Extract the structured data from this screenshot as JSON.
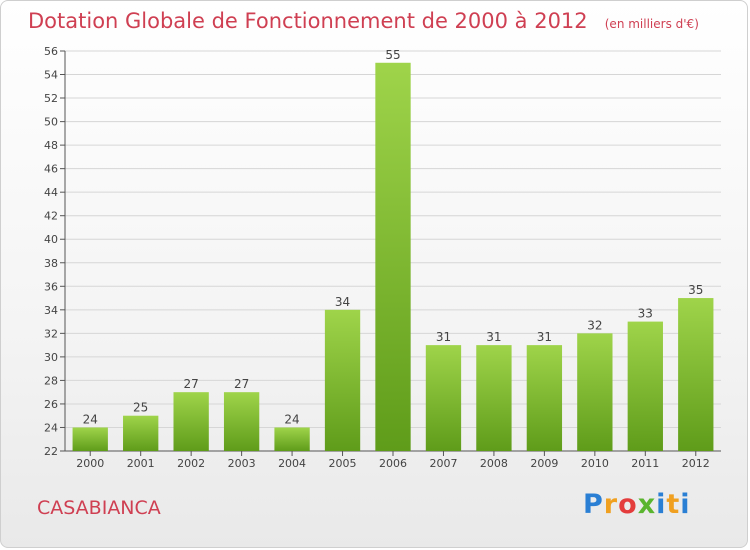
{
  "header": {
    "title": "Dotation Globale de Fonctionnement de 2000 à 2012",
    "subtitle": "(en milliers d'€)"
  },
  "footer": {
    "commune": "CASABIANCA",
    "logo_text": "Proxiti"
  },
  "colors": {
    "title": "#cf3f52",
    "bar_light": "#9fd44a",
    "bar_dark": "#5f9c1a",
    "grid": "#d6d6d6"
  },
  "chart_data": {
    "type": "bar",
    "categories": [
      "2000",
      "2001",
      "2002",
      "2003",
      "2004",
      "2005",
      "2006",
      "2007",
      "2008",
      "2009",
      "2010",
      "2011",
      "2012"
    ],
    "values": [
      24,
      25,
      27,
      27,
      24,
      34,
      55,
      31,
      31,
      31,
      32,
      33,
      35
    ],
    "title": "Dotation Globale de Fonctionnement de 2000 à 2012",
    "subtitle": "(en milliers d'€)",
    "xlabel": "",
    "ylabel": "",
    "ylim": [
      22,
      56
    ],
    "yticks": [
      22,
      24,
      26,
      28,
      30,
      32,
      34,
      36,
      38,
      40,
      42,
      44,
      46,
      48,
      50,
      52,
      54,
      56
    ],
    "grid": true
  }
}
